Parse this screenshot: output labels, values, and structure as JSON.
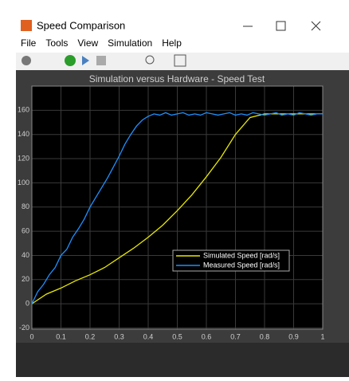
{
  "window": {
    "title": "Speed Comparison",
    "menu": [
      "File",
      "Tools",
      "View",
      "Simulation",
      "Help"
    ]
  },
  "chart_data": {
    "type": "line",
    "title": "Simulation versus Hardware - Speed Test",
    "xlim": [
      0,
      1
    ],
    "xticks": [
      0,
      0.1,
      0.2,
      0.3,
      0.4,
      0.5,
      0.6,
      0.7,
      0.8,
      0.9,
      1
    ],
    "ylim": [
      -21,
      180
    ],
    "yticks": [
      -20,
      0,
      20,
      40,
      60,
      80,
      100,
      120,
      140,
      160
    ],
    "grid": true,
    "legend": "lower right",
    "series": [
      {
        "name": "Simulated Speed [rad/s]",
        "color": "#e8e800",
        "x": [
          0,
          0.05,
          0.1,
          0.15,
          0.2,
          0.25,
          0.3,
          0.35,
          0.4,
          0.45,
          0.5,
          0.55,
          0.6,
          0.65,
          0.7,
          0.75,
          0.8,
          0.85,
          0.9,
          0.95,
          1
        ],
        "values": [
          0,
          8,
          13,
          19,
          24,
          30,
          38,
          46,
          55,
          65,
          77,
          90,
          105,
          121,
          140,
          154,
          157,
          157,
          157,
          157,
          157
        ]
      },
      {
        "name": "Measured Speed [rad/s]",
        "color": "#1e90ff",
        "x": [
          0,
          0.02,
          0.04,
          0.06,
          0.08,
          0.1,
          0.12,
          0.14,
          0.16,
          0.18,
          0.2,
          0.22,
          0.24,
          0.26,
          0.28,
          0.3,
          0.32,
          0.34,
          0.36,
          0.38,
          0.4,
          0.42,
          0.44,
          0.46,
          0.48,
          0.5,
          0.52,
          0.54,
          0.56,
          0.58,
          0.6,
          0.62,
          0.64,
          0.66,
          0.68,
          0.7,
          0.72,
          0.74,
          0.76,
          0.78,
          0.8,
          0.82,
          0.84,
          0.86,
          0.88,
          0.9,
          0.92,
          0.94,
          0.96,
          0.98,
          1
        ],
        "values": [
          0,
          10,
          16,
          24,
          30,
          40,
          45,
          55,
          62,
          70,
          80,
          88,
          96,
          104,
          113,
          122,
          132,
          140,
          147,
          152,
          155,
          157,
          156,
          158,
          156,
          157,
          158,
          156,
          157,
          156,
          158,
          157,
          156,
          157,
          158,
          156,
          157,
          156,
          158,
          157,
          156,
          157,
          158,
          156,
          157,
          156,
          158,
          157,
          156,
          157,
          157
        ]
      }
    ]
  }
}
